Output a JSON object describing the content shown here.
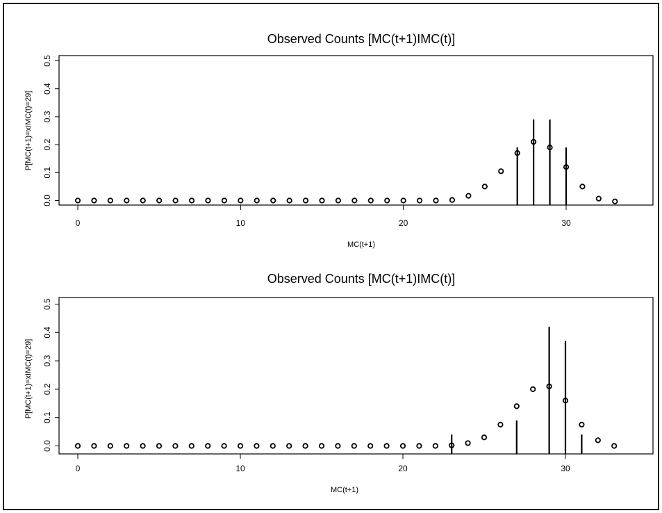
{
  "chart_data": [
    {
      "type": "scatter",
      "title": "Observed Counts [MC(t+1)IMC(t)]",
      "xlabel": "MC(t+1)",
      "ylabel": "P[MC(t+1)=xIMC(t)=29]",
      "xlim": [
        -1,
        34
      ],
      "ylim": [
        -0.015,
        0.52
      ],
      "xticks": [
        0,
        10,
        20,
        30
      ],
      "xtick_labels": [
        "0",
        "10",
        "20",
        "30"
      ],
      "yticks": [
        0.0,
        0.1,
        0.2,
        0.3,
        0.4,
        0.5
      ],
      "ytick_labels": [
        "0.0",
        "0.1",
        "0.2",
        "0.3",
        "0.4",
        "0.5"
      ],
      "grid": false,
      "series": [
        {
          "x": [
            0,
            1,
            2,
            3,
            4,
            5,
            6,
            7,
            8,
            9,
            10,
            11,
            12,
            13,
            14,
            15,
            16,
            17,
            18,
            19,
            20,
            21,
            22,
            23,
            24,
            25,
            26,
            27,
            28,
            29,
            30,
            31,
            32,
            33
          ],
          "values": [
            0,
            0,
            0,
            0,
            0,
            0,
            0,
            0,
            0,
            0,
            0,
            0,
            0,
            0,
            0,
            0,
            0,
            0,
            0,
            0,
            0,
            0,
            0,
            0.002,
            0.017,
            0.05,
            0.105,
            0.17,
            0.21,
            0.19,
            0.12,
            0.05,
            0.007,
            -0.003
          ]
        },
        {
          "x": [
            27,
            28,
            29,
            30
          ],
          "values": [
            0.19,
            0.29,
            0.29,
            0.19
          ]
        }
      ]
    },
    {
      "type": "scatter",
      "title": "Observed Counts [MC(t+1)IMC(t)]",
      "xlabel": "MC(t+1)",
      "ylabel": "P[MC(t+1)=xIMC(t)=29]",
      "xlim": [
        -1,
        34
      ],
      "ylim": [
        -0.015,
        0.52
      ],
      "xticks": [
        0,
        10,
        20,
        30
      ],
      "xtick_labels": [
        "0",
        "10",
        "20",
        "30"
      ],
      "yticks": [
        0.0,
        0.1,
        0.2,
        0.3,
        0.4,
        0.5
      ],
      "ytick_labels": [
        "0.0",
        "0.1",
        "0.2",
        "0.3",
        "0.4",
        "0.5"
      ],
      "grid": false,
      "series": [
        {
          "x": [
            0,
            1,
            2,
            3,
            4,
            5,
            6,
            7,
            8,
            9,
            10,
            11,
            12,
            13,
            14,
            15,
            16,
            17,
            18,
            19,
            20,
            21,
            22,
            23,
            24,
            25,
            26,
            27,
            28,
            29,
            30,
            31,
            32,
            33
          ],
          "values": [
            0,
            0,
            0,
            0,
            0,
            0,
            0,
            0,
            0,
            0,
            0,
            0,
            0,
            0,
            0,
            0,
            0,
            0,
            0,
            0,
            0,
            0,
            0,
            0.002,
            0.01,
            0.03,
            0.075,
            0.14,
            0.2,
            0.21,
            0.16,
            0.075,
            0.02,
            0
          ]
        },
        {
          "x": [
            23,
            27,
            29,
            30,
            31
          ],
          "values": [
            0.04,
            0.09,
            0.42,
            0.37,
            0.04
          ]
        }
      ]
    }
  ]
}
